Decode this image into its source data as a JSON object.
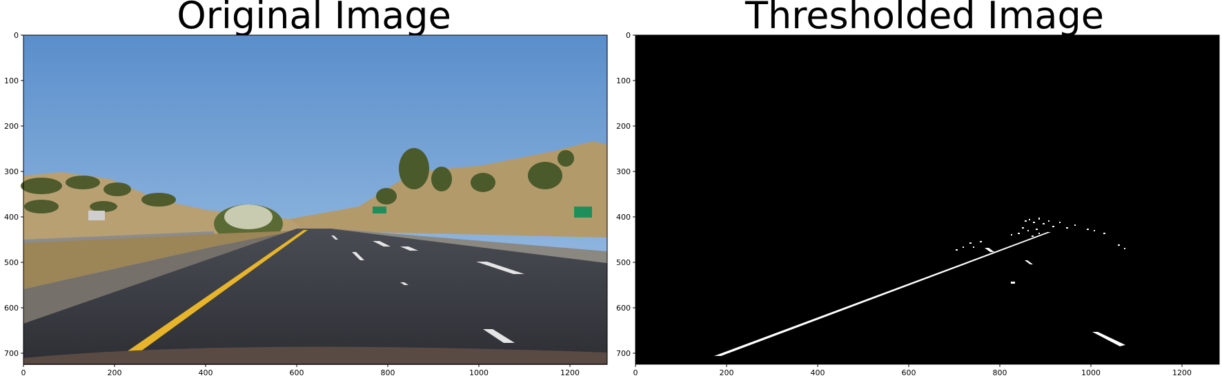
{
  "figure": {
    "left": {
      "title": "Original Image",
      "x_ticks": [
        "0",
        "200",
        "400",
        "600",
        "800",
        "1000",
        "1200"
      ],
      "y_ticks": [
        "0",
        "100",
        "200",
        "300",
        "400",
        "500",
        "600",
        "700"
      ]
    },
    "right": {
      "title": "Thresholded Image",
      "x_ticks": [
        "0",
        "200",
        "400",
        "600",
        "800",
        "1000",
        "1200"
      ],
      "y_ticks": [
        "0",
        "100",
        "200",
        "300",
        "400",
        "500",
        "600",
        "700"
      ]
    }
  },
  "colors": {
    "sky_top": "#5b8fc9",
    "sky_bottom": "#9ec2e6",
    "hill": "#b59a6a",
    "road": "#3a3c44",
    "yellow_line": "#e8b52a",
    "threshold_bg": "#000000",
    "threshold_fg": "#ffffff"
  }
}
